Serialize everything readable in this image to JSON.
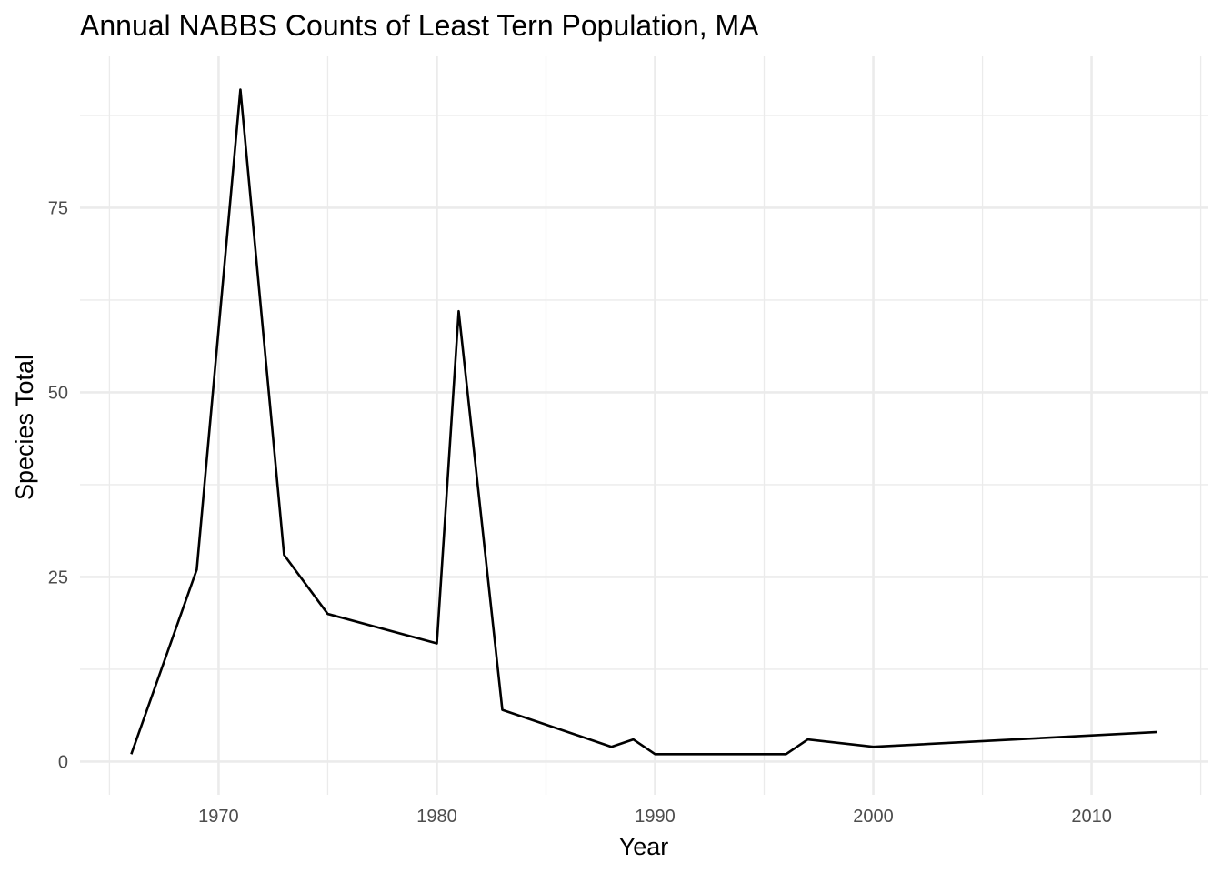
{
  "chart_data": {
    "type": "line",
    "title": "Annual NABBS Counts of Least Tern Population, MA",
    "xlabel": "Year",
    "ylabel": "Species Total",
    "xlim": [
      1963.65,
      2015.35
    ],
    "ylim": [
      -4.5,
      95.5
    ],
    "x_major_ticks": [
      1970,
      1980,
      1990,
      2000,
      2010
    ],
    "x_minor_ticks": [
      1965,
      1975,
      1985,
      1995,
      2005,
      2015
    ],
    "y_major_ticks": [
      0,
      25,
      50,
      75
    ],
    "y_minor_ticks": [
      12.5,
      37.5,
      62.5,
      87.5
    ],
    "x_tick_labels": [
      "1970",
      "1980",
      "1990",
      "2000",
      "2010"
    ],
    "y_tick_labels": [
      "0",
      "25",
      "50",
      "75"
    ],
    "grid": true,
    "series": [
      {
        "name": "Least Tern",
        "color": "#000000",
        "x": [
          1966,
          1969,
          1971,
          1973,
          1975,
          1980,
          1981,
          1983,
          1988,
          1989,
          1990,
          1996,
          1997,
          2000,
          2013
        ],
        "y": [
          1,
          26,
          91,
          28,
          20,
          16,
          61,
          7,
          2,
          3,
          1,
          1,
          3,
          2,
          4
        ]
      }
    ]
  }
}
